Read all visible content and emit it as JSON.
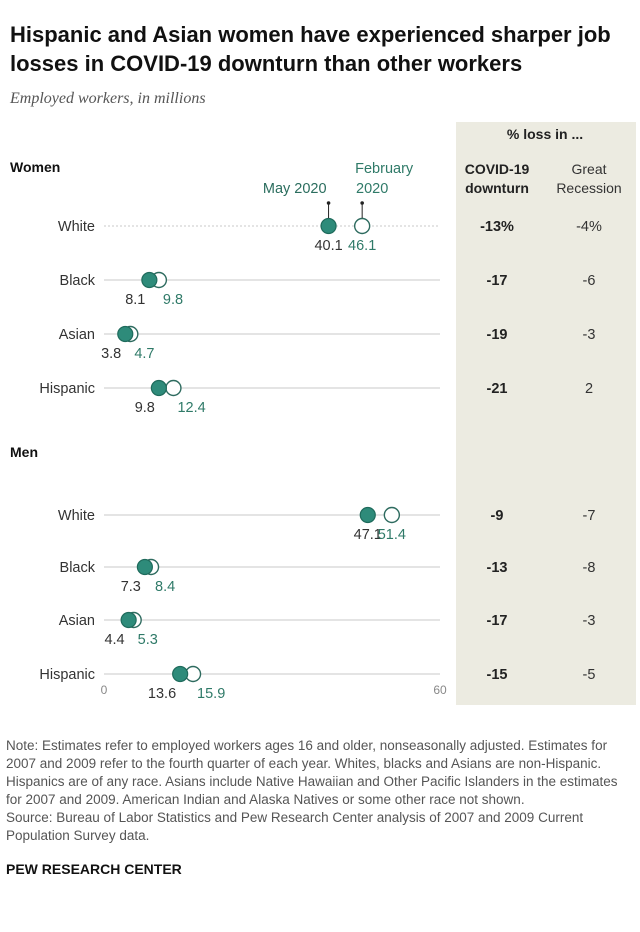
{
  "title": "Hispanic and Asian women have experienced sharper job losses in COVID-19 downturn than other workers",
  "subtitle": "Employed workers, in millions",
  "colors": {
    "may": "#2e8b7a",
    "may_stroke": "#1f6b5c",
    "feb": "#ffffff",
    "feb_stroke": "#2e6b5f",
    "label": "#2f7a68",
    "panel": "#ecebe1"
  },
  "legend": {
    "may_label": "May 2020",
    "feb_label": "February 2020"
  },
  "table_header": {
    "group": "% loss in ...",
    "col1": "COVID-19 downturn",
    "col2": "Great Recession"
  },
  "chart_data": {
    "type": "dot",
    "xlim": [
      0,
      60
    ],
    "xticks": [
      "0",
      "60"
    ],
    "series": [
      {
        "name": "May 2020",
        "style": "filled"
      },
      {
        "name": "February 2020",
        "style": "hollow"
      }
    ],
    "groups": [
      {
        "name": "Women",
        "rows": [
          {
            "label": "White",
            "may": 40.1,
            "feb": 46.1,
            "may_label": "40.1",
            "feb_label": "46.1",
            "covid": "-13%",
            "recession": "-4%"
          },
          {
            "label": "Black",
            "may": 8.1,
            "feb": 9.8,
            "may_label": "8.1",
            "feb_label": "9.8",
            "covid": "-17",
            "recession": "-6"
          },
          {
            "label": "Asian",
            "may": 3.8,
            "feb": 4.7,
            "may_label": "3.8",
            "feb_label": "4.7",
            "covid": "-19",
            "recession": "-3"
          },
          {
            "label": "Hispanic",
            "may": 9.8,
            "feb": 12.4,
            "may_label": "9.8",
            "feb_label": "12.4",
            "covid": "-21",
            "recession": "2"
          }
        ]
      },
      {
        "name": "Men",
        "rows": [
          {
            "label": "White",
            "may": 47.1,
            "feb": 51.4,
            "may_label": "47.1",
            "feb_label": "51.4",
            "covid": "-9",
            "recession": "-7"
          },
          {
            "label": "Black",
            "may": 7.3,
            "feb": 8.4,
            "may_label": "7.3",
            "feb_label": "8.4",
            "covid": "-13",
            "recession": "-8"
          },
          {
            "label": "Asian",
            "may": 4.4,
            "feb": 5.3,
            "may_label": "4.4",
            "feb_label": "5.3",
            "covid": "-17",
            "recession": "-3"
          },
          {
            "label": "Hispanic",
            "may": 13.6,
            "feb": 15.9,
            "may_label": "13.6",
            "feb_label": "15.9",
            "covid": "-15",
            "recession": "-5"
          }
        ]
      }
    ]
  },
  "notes": [
    "Note: Estimates refer to employed workers ages 16 and older, nonseasonally adjusted. Estimates for 2007 and 2009 refer to the fourth quarter of each year. Whites, blacks and Asians are non-Hispanic. Hispanics are of any race. Asians include Native Hawaiian and Other Pacific Islanders in the estimates for 2007 and 2009. American Indian and Alaska Natives or some other race not shown.",
    "Source: Bureau of Labor Statistics and Pew Research Center analysis of 2007 and 2009 Current Population Survey data."
  ],
  "brand": "PEW RESEARCH CENTER"
}
